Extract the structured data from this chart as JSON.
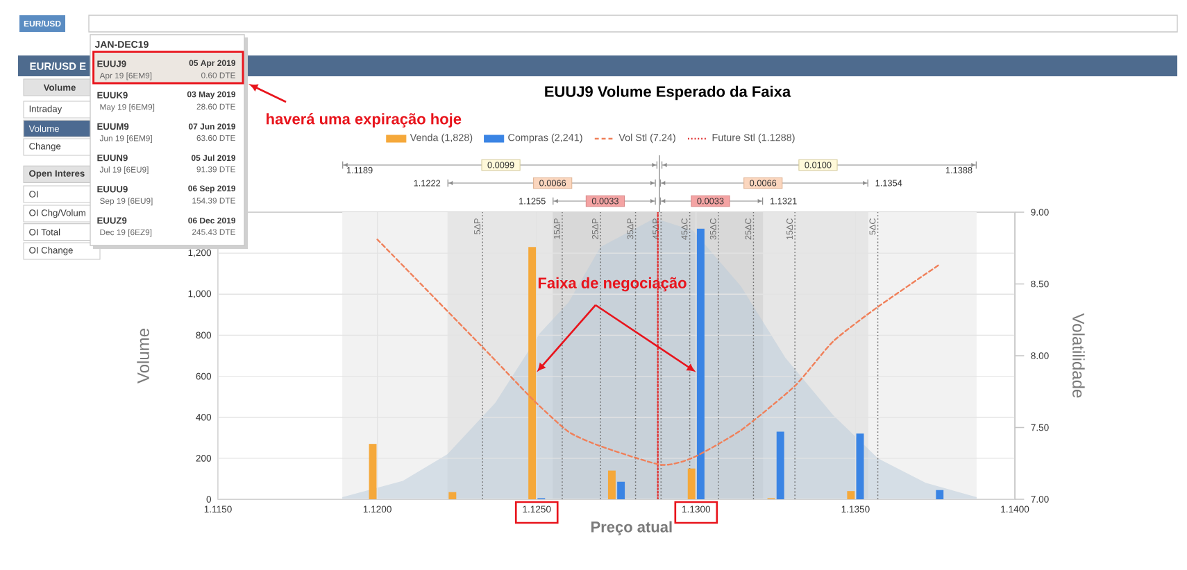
{
  "chart_data": {
    "type": "bar",
    "title": "EUUJ9 Volume Esperado da Faixa",
    "xlabel": "Preço atual",
    "ylabel": "Volume",
    "y2label": "Volatilidade",
    "xlim": [
      1.115,
      1.14
    ],
    "xticks": [
      {
        "value": 1.115,
        "label": "1.1150"
      },
      {
        "value": 1.12,
        "label": "1.1200"
      },
      {
        "value": 1.125,
        "label": "1.1250"
      },
      {
        "value": 1.13,
        "label": "1.1300"
      },
      {
        "value": 1.135,
        "label": "1.1350"
      },
      {
        "value": 1.14,
        "label": "1.1400"
      }
    ],
    "ylim": [
      0,
      1400
    ],
    "yticks": [
      0,
      200,
      400,
      600,
      800,
      {
        "value": 1000,
        "label": "1,000"
      },
      {
        "value": 1200,
        "label": "1,200"
      }
    ],
    "y2lim": [
      7,
      9
    ],
    "y2ticks": [
      {
        "value": 7,
        "label": "7.00"
      },
      {
        "value": 7.5,
        "label": "7.50"
      },
      {
        "value": 8,
        "label": "8.00"
      },
      {
        "value": 8.5,
        "label": "8.50"
      },
      {
        "value": 9,
        "label": "9.00"
      }
    ],
    "grid": true,
    "legend": "top",
    "series": [
      {
        "type": "area",
        "color": "#b8c9da",
        "x": [
          1.1189,
          1.1208,
          1.1222,
          1.1237,
          1.1251,
          1.126,
          1.127,
          1.1287,
          1.1299,
          1.1314,
          1.1328,
          1.1343,
          1.1357,
          1.1372,
          1.1388
        ],
        "values": [
          10,
          90,
          220,
          470,
          810,
          960,
          1230,
          1370,
          1310,
          1040,
          690,
          410,
          200,
          80,
          10
        ]
      },
      {
        "name": "Venda (1,828)",
        "color": "#f5a83a",
        "x": [
          1.12,
          1.1225,
          1.125,
          1.1275,
          1.13,
          1.1325,
          1.135
        ],
        "values": [
          270,
          35,
          1230,
          140,
          150,
          5,
          40
        ]
      },
      {
        "name": "Compras (2,241)",
        "color": "#3a84e4",
        "x": [
          1.125,
          1.1275,
          1.13,
          1.1325,
          1.135,
          1.1375
        ],
        "values": [
          5,
          85,
          1320,
          330,
          320,
          45
        ]
      },
      {
        "name": "Vol Stl (7.24)",
        "type": "line",
        "axis": "y2",
        "color": "#f0805a",
        "line_style": "dashed",
        "x": [
          1.12,
          1.1233,
          1.1249,
          1.126,
          1.127,
          1.1289,
          1.1299,
          1.1314,
          1.1331,
          1.1343,
          1.1357,
          1.1376
        ],
        "values": [
          8.81,
          8.06,
          7.69,
          7.47,
          7.37,
          7.24,
          7.29,
          7.48,
          7.79,
          8.1,
          8.34,
          8.63
        ]
      },
      {
        "name": "Future Stl (1.1288)",
        "type": "line",
        "color": "#e03030",
        "line_style": "dotted",
        "x": [
          1.1288,
          1.1288
        ],
        "values": [
          0,
          1400
        ]
      }
    ],
    "ref_lines": [
      {
        "axis": "x",
        "value": 1.1233,
        "label": "5ΔP",
        "color": "#6e6e6e",
        "line_style": "dotted"
      },
      {
        "axis": "x",
        "value": 1.1258,
        "label": "15ΔP",
        "color": "#6e6e6e",
        "line_style": "dotted"
      },
      {
        "axis": "x",
        "value": 1.127,
        "label": "25ΔP",
        "color": "#6e6e6e",
        "line_style": "dotted"
      },
      {
        "axis": "x",
        "value": 1.1281,
        "label": "35ΔP",
        "color": "#6e6e6e",
        "line_style": "dotted"
      },
      {
        "axis": "x",
        "value": 1.1289,
        "label": "45ΔP",
        "color": "#6e6e6e",
        "line_style": "dotted"
      },
      {
        "axis": "x",
        "value": 1.1298,
        "label": "45ΔC",
        "color": "#6e6e6e",
        "line_style": "dotted"
      },
      {
        "axis": "x",
        "value": 1.1307,
        "label": "35ΔC",
        "color": "#6e6e6e",
        "line_style": "dotted"
      },
      {
        "axis": "x",
        "value": 1.1318,
        "label": "25ΔC",
        "color": "#6e6e6e",
        "line_style": "dotted"
      },
      {
        "axis": "x",
        "value": 1.1331,
        "label": "15ΔC",
        "color": "#6e6e6e",
        "line_style": "dotted"
      },
      {
        "axis": "x",
        "value": 1.1357,
        "label": "5ΔC",
        "color": "#6e6e6e",
        "line_style": "dotted"
      }
    ],
    "bands": [
      {
        "axis": "x",
        "from": 1.1189,
        "to": 1.1388,
        "color": "#f2f2f2"
      },
      {
        "axis": "x",
        "from": 1.1222,
        "to": 1.1354,
        "color": "#e6e6e6"
      },
      {
        "axis": "x",
        "from": 1.1255,
        "to": 1.1321,
        "color": "#d8d8d8"
      }
    ],
    "annotations": [
      "haverá uma expiração hoje",
      {
        "text": "Faixa de negociação",
        "x": 1.125,
        "y": 620
      },
      "1.1189",
      "0.0099",
      "0.0100",
      "1.1388",
      "1.1222",
      "0.0066",
      "0.0066",
      "1.1354",
      "1.1255",
      "0.0033",
      "0.0033",
      "1.1321",
      "EUR/USD",
      "EUR/USD E",
      "Volume",
      "Intraday",
      "Volume",
      "Change",
      "Open Interes",
      "OI",
      "OI Chg/Volum",
      "OI Total",
      "OI Change",
      "JAN-DEC19",
      "EUUJ9",
      "05 Apr 2019",
      "Apr 19 [6EM9]",
      "0.60 DTE",
      "EUUK9",
      "03 May 2019",
      "May 19 [6EM9]",
      "28.60 DTE",
      "EUUM9",
      "07 Jun 2019",
      "Jun 19 [6EM9]",
      "63.60 DTE",
      "EUUN9",
      "05 Jul 2019",
      "Jul 19 [6EU9]",
      "91.39 DTE",
      "EUUU9",
      "06 Sep 2019",
      "Sep 19 [6EU9]",
      "154.39 DTE",
      "EUUZ9",
      "06 Dec 2019",
      "Dec 19 [6EZ9]",
      "245.43 DTE"
    ]
  }
}
